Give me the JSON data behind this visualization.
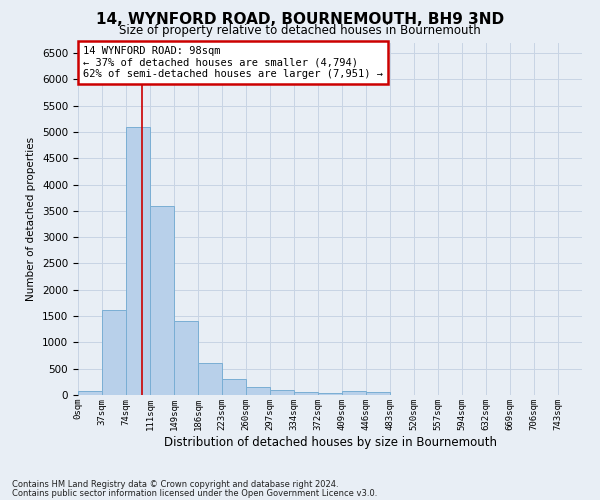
{
  "title": "14, WYNFORD ROAD, BOURNEMOUTH, BH9 3ND",
  "subtitle": "Size of property relative to detached houses in Bournemouth",
  "xlabel": "Distribution of detached houses by size in Bournemouth",
  "ylabel": "Number of detached properties",
  "footnote1": "Contains HM Land Registry data © Crown copyright and database right 2024.",
  "footnote2": "Contains public sector information licensed under the Open Government Licence v3.0.",
  "bin_labels": [
    "0sqm",
    "37sqm",
    "74sqm",
    "111sqm",
    "149sqm",
    "186sqm",
    "223sqm",
    "260sqm",
    "297sqm",
    "334sqm",
    "372sqm",
    "409sqm",
    "446sqm",
    "483sqm",
    "520sqm",
    "557sqm",
    "594sqm",
    "632sqm",
    "669sqm",
    "706sqm",
    "743sqm"
  ],
  "bar_values": [
    70,
    1620,
    5100,
    3600,
    1400,
    610,
    300,
    155,
    100,
    60,
    40,
    70,
    60,
    0,
    0,
    0,
    0,
    0,
    0,
    0,
    0
  ],
  "bar_color": "#b8d0ea",
  "bar_edge_color": "#7aaed4",
  "grid_color": "#c8d4e4",
  "background_color": "#e8eef5",
  "red_line_x": 98,
  "bin_width": 37,
  "annotation_text": "14 WYNFORD ROAD: 98sqm\n← 37% of detached houses are smaller (4,794)\n62% of semi-detached houses are larger (7,951) →",
  "annotation_box_color": "#ffffff",
  "annotation_border_color": "#cc0000",
  "ylim": [
    0,
    6700
  ],
  "yticks": [
    0,
    500,
    1000,
    1500,
    2000,
    2500,
    3000,
    3500,
    4000,
    4500,
    5000,
    5500,
    6000,
    6500
  ]
}
